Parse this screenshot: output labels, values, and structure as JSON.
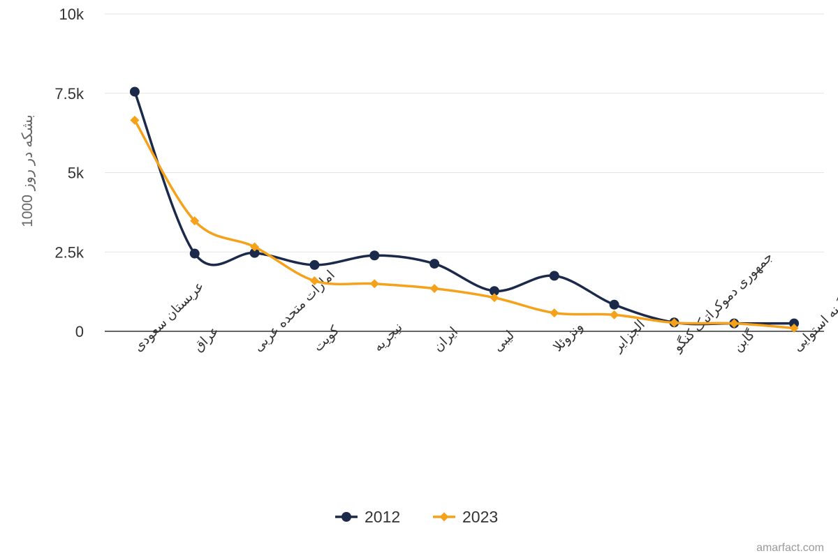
{
  "chart_data": {
    "type": "line",
    "categories": [
      "عربستان سعودی",
      "عراق",
      "امارات متحده عربی",
      "کویت",
      "نیجریه",
      "ایران",
      "لیبی",
      "ونزوئلا",
      "الجزایر",
      "جمهوری دموکراتیک کنگو",
      "گابن",
      "گینه استوایی"
    ],
    "series": [
      {
        "name": "2012",
        "color": "#1b2a4a",
        "marker": "circle",
        "values": [
          7550,
          2450,
          2470,
          2090,
          2390,
          2130,
          1270,
          1750,
          840,
          280,
          250,
          250
        ]
      },
      {
        "name": "2023",
        "color": "#f5a11a",
        "marker": "diamond",
        "values": [
          6650,
          3480,
          2660,
          1590,
          1500,
          1350,
          1060,
          580,
          520,
          270,
          250,
          100
        ]
      }
    ],
    "ylabel": "1000 بشکه در روز",
    "ylim": [
      0,
      10000
    ],
    "yticks": [
      0,
      2500,
      5000,
      7500,
      10000
    ],
    "ytick_labels": [
      "0",
      "2.5k",
      "5k",
      "7.5k",
      "10k"
    ],
    "legend_position": "bottom-center",
    "grid": true
  },
  "credit": "amarfact.com"
}
